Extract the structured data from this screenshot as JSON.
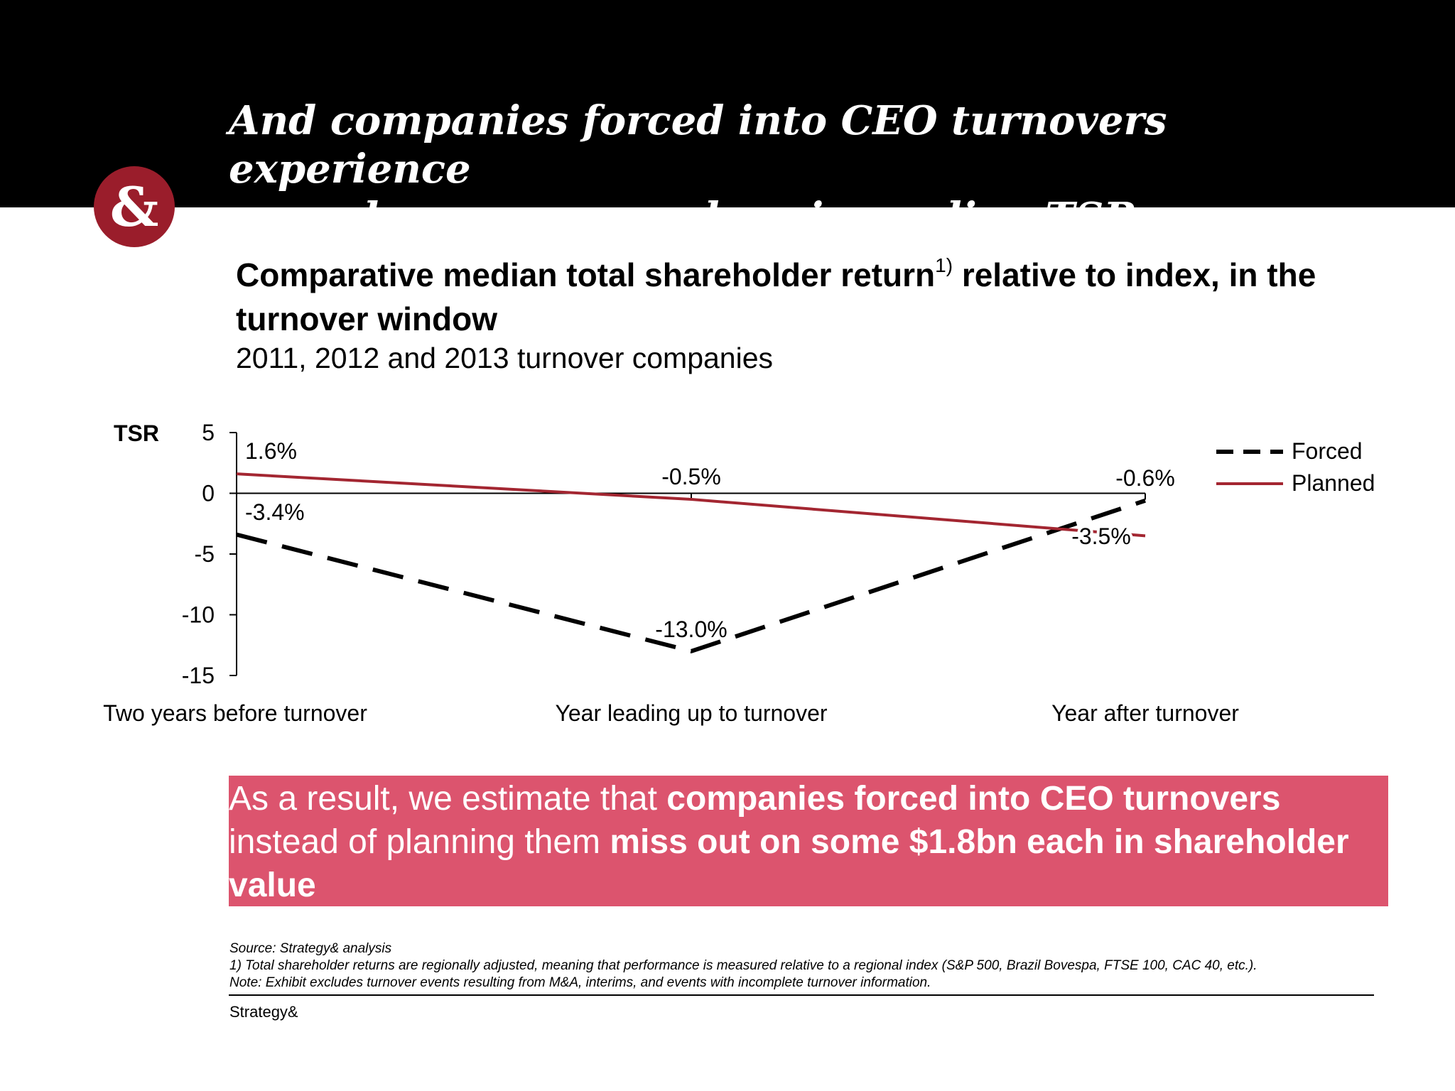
{
  "header": {
    "title": "And companies forced into CEO turnovers experience\na much more severe drop in median TSR",
    "logo_glyph": "&",
    "background": "#000000",
    "logo_color": "#9a1d2b"
  },
  "chart_title": {
    "main_part1": "Comparative median total shareholder return",
    "footnote_marker": "1)",
    "main_part2": " relative to index, in the turnover window",
    "subtitle": "2011, 2012 and 2013 turnover companies"
  },
  "chart_data": {
    "type": "line",
    "ylabel": "TSR",
    "categories": [
      "Two years before turnover",
      "Year leading up to turnover",
      "Year after turnover"
    ],
    "ylim": [
      -15,
      5
    ],
    "yticks": [
      5,
      0,
      -5,
      -10,
      -15
    ],
    "legend_position": "top-right",
    "grid": false,
    "series": [
      {
        "name": "Forced",
        "values": [
          -3.4,
          -13.0,
          -0.6
        ],
        "labels": [
          "-3.4%",
          "-13.0%",
          "-0.6%"
        ],
        "color": "#000000",
        "dash": true
      },
      {
        "name": "Planned",
        "values": [
          1.6,
          -0.5,
          -3.5
        ],
        "labels": [
          "1.6%",
          "-0.5%",
          "-3.5%"
        ],
        "color": "#a32631",
        "dash": false
      }
    ]
  },
  "result": {
    "text1": "As a result, we estimate that ",
    "bold1": "companies forced into CEO turnovers",
    "text2": " instead of planning them ",
    "bold2": "miss out on some $1.8bn each in shareholder value",
    "background": "#dc546e"
  },
  "footnotes": {
    "source": "Source: Strategy& analysis",
    "note1": "1) Total shareholder returns are regionally adjusted, meaning that performance is measured relative to a regional index (S&P 500, Brazil Bovespa, FTSE 100, CAC 40, etc.).",
    "note2": "Note: Exhibit excludes turnover events resulting from M&A, interims, and events with incomplete turnover information."
  },
  "footer": {
    "brand": "Strategy&"
  }
}
